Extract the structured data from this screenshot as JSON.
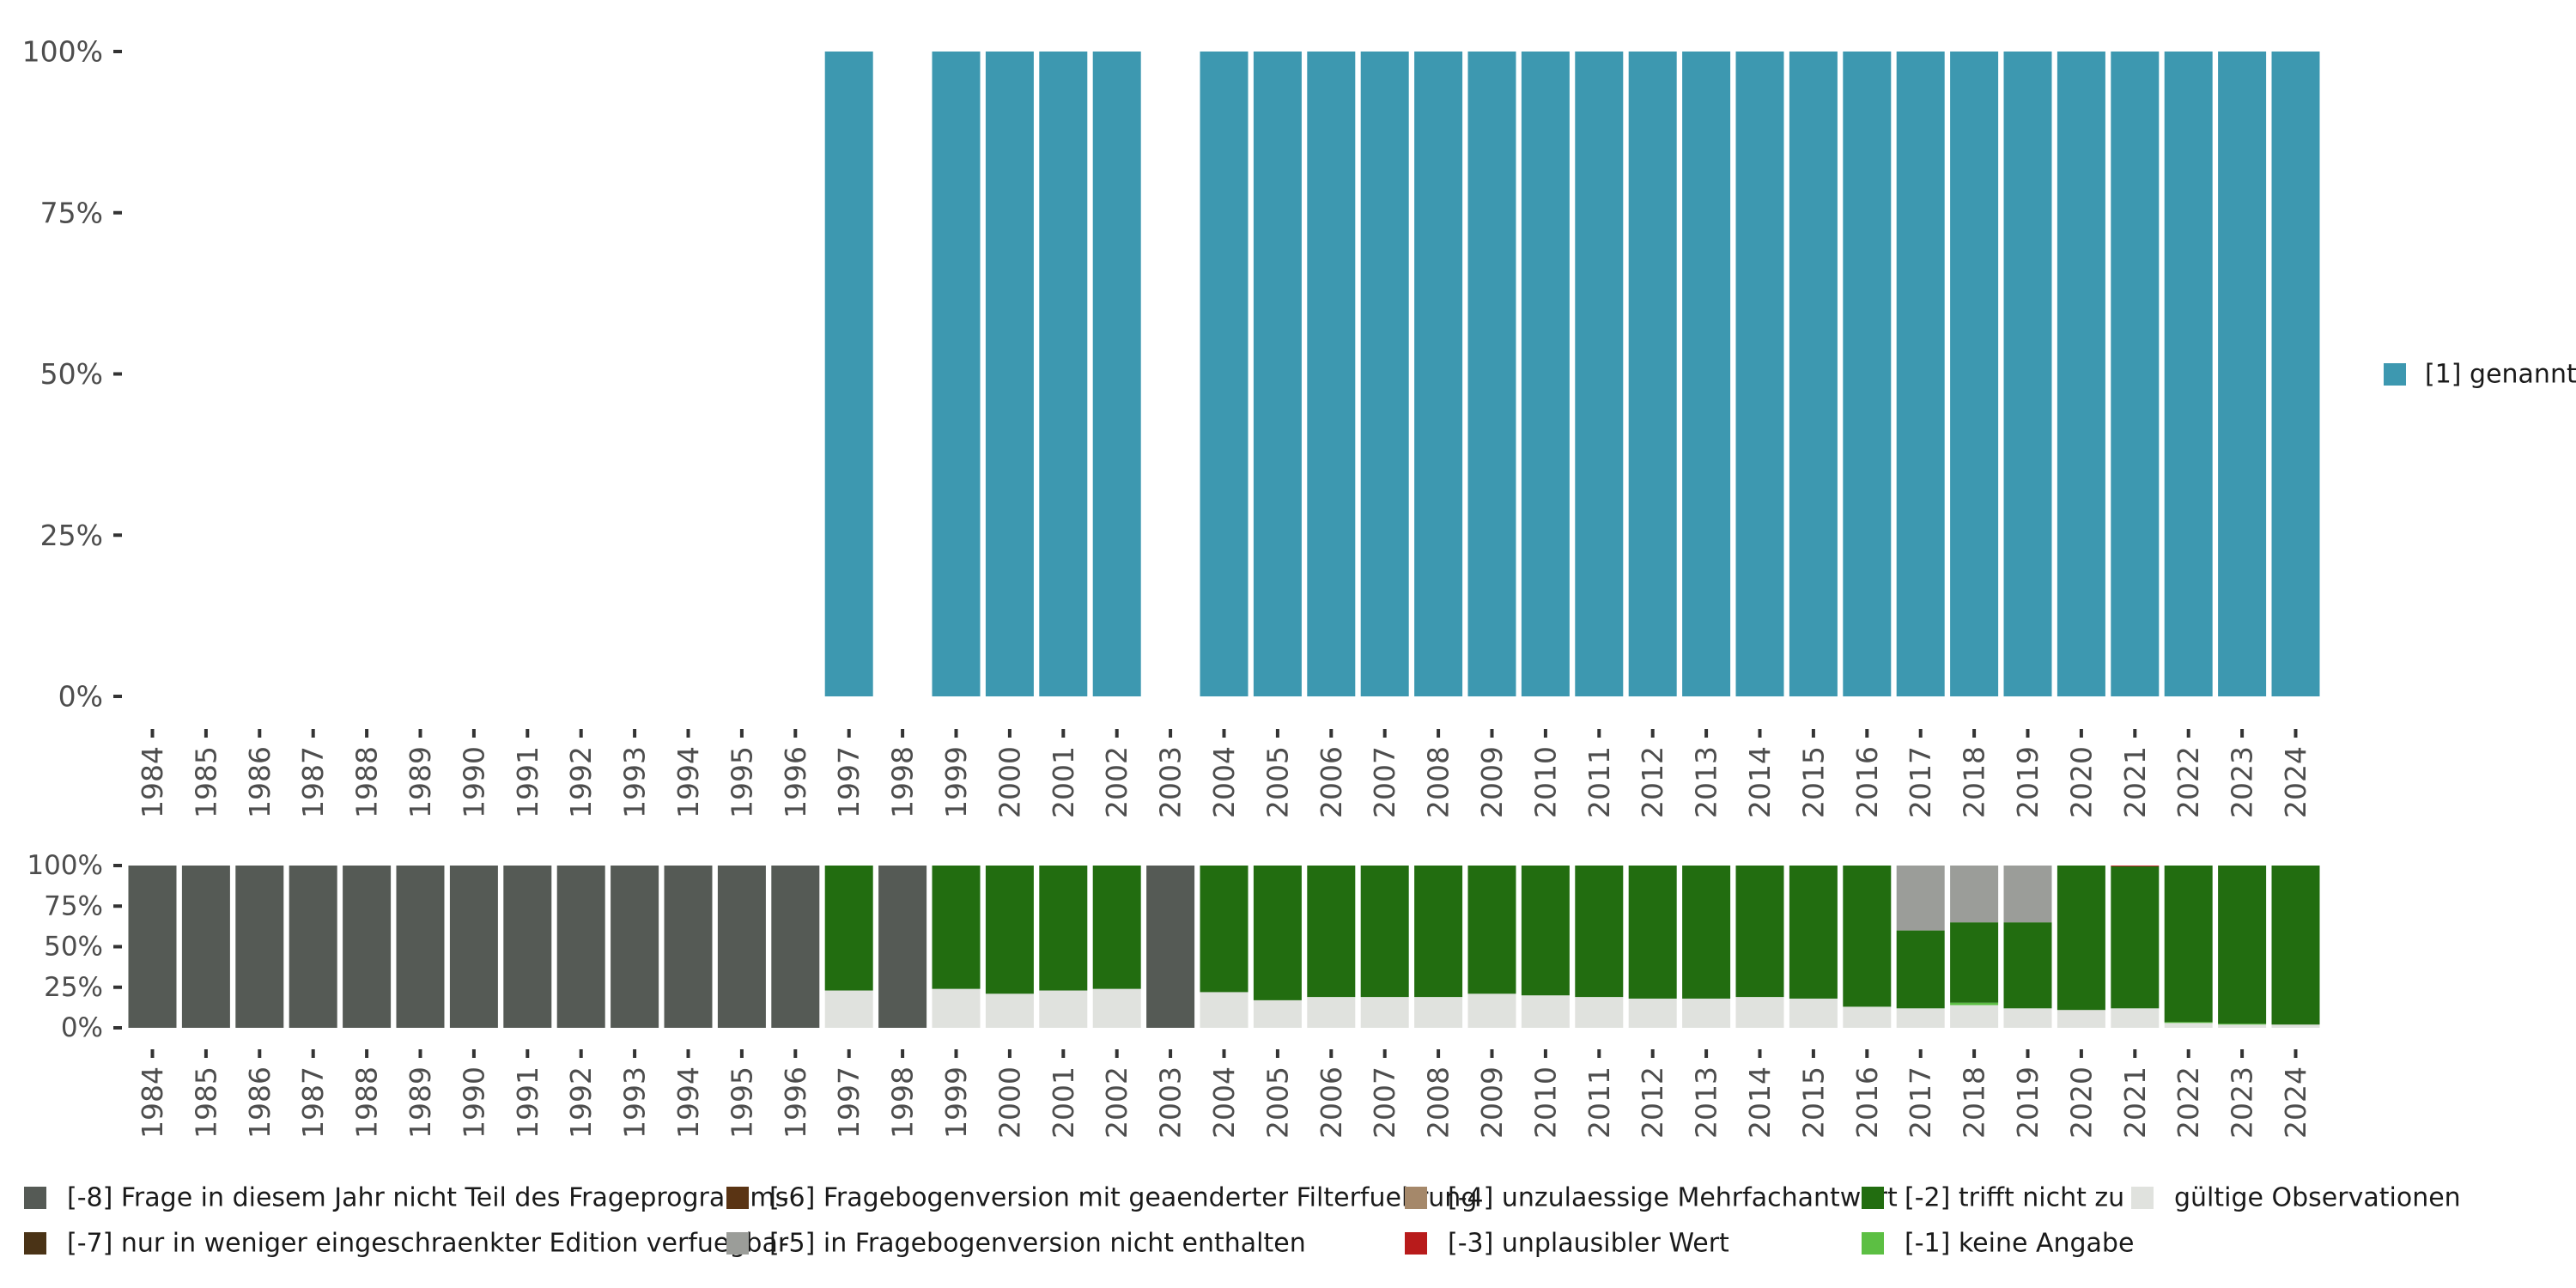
{
  "chart_data": [
    {
      "type": "bar",
      "stacked": true,
      "categories": [
        "1984",
        "1985",
        "1986",
        "1987",
        "1988",
        "1989",
        "1990",
        "1991",
        "1992",
        "1993",
        "1994",
        "1995",
        "1996",
        "1997",
        "1998",
        "1999",
        "2000",
        "2001",
        "2002",
        "2003",
        "2004",
        "2005",
        "2006",
        "2007",
        "2008",
        "2009",
        "2010",
        "2011",
        "2012",
        "2013",
        "2014",
        "2015",
        "2016",
        "2017",
        "2018",
        "2019",
        "2020",
        "2021",
        "2022",
        "2023",
        "2024"
      ],
      "y_tick_labels": [
        "0%",
        "25%",
        "50%",
        "75%",
        "100%"
      ],
      "ylim": [
        0,
        100
      ],
      "legend_position": "right",
      "series": [
        {
          "name": "[1] genannt",
          "color": "#3d98b0",
          "values": [
            0,
            0,
            0,
            0,
            0,
            0,
            0,
            0,
            0,
            0,
            0,
            0,
            0,
            100,
            0,
            100,
            100,
            100,
            100,
            0,
            100,
            100,
            100,
            100,
            100,
            100,
            100,
            100,
            100,
            100,
            100,
            100,
            100,
            100,
            100,
            100,
            100,
            100,
            100,
            100,
            100
          ]
        }
      ]
    },
    {
      "type": "bar",
      "stacked": true,
      "categories": [
        "1984",
        "1985",
        "1986",
        "1987",
        "1988",
        "1989",
        "1990",
        "1991",
        "1992",
        "1993",
        "1994",
        "1995",
        "1996",
        "1997",
        "1998",
        "1999",
        "2000",
        "2001",
        "2002",
        "2003",
        "2004",
        "2005",
        "2006",
        "2007",
        "2008",
        "2009",
        "2010",
        "2011",
        "2012",
        "2013",
        "2014",
        "2015",
        "2016",
        "2017",
        "2018",
        "2019",
        "2020",
        "2021",
        "2022",
        "2023",
        "2024"
      ],
      "y_tick_labels": [
        "0%",
        "25%",
        "50%",
        "75%",
        "100%"
      ],
      "ylim": [
        0,
        100
      ],
      "legend_position": "bottom",
      "series": [
        {
          "name": "gültige Observationen",
          "color": "#e0e2de",
          "values": [
            0,
            0,
            0,
            0,
            0,
            0,
            0,
            0,
            0,
            0,
            0,
            0,
            0,
            23,
            0,
            24,
            21,
            23,
            24,
            0,
            22,
            17,
            19,
            19,
            19,
            21,
            20,
            19,
            18,
            18,
            19,
            18,
            13,
            12,
            14,
            12,
            11,
            12,
            3,
            2,
            2
          ]
        },
        {
          "name": "[-1] keine Angabe",
          "color": "#5cbf43",
          "values": [
            0,
            0,
            0,
            0,
            0,
            0,
            0,
            0,
            0,
            0,
            0,
            0,
            0,
            0,
            0,
            0,
            0,
            0,
            0,
            0,
            0,
            0,
            0,
            0,
            0,
            0,
            0,
            0,
            0,
            0,
            0,
            0,
            0,
            0,
            1.5,
            0,
            0,
            0,
            0.5,
            0.5,
            0
          ]
        },
        {
          "name": "[-2] trifft nicht zu",
          "color": "#226d10",
          "values": [
            0,
            0,
            0,
            0,
            0,
            0,
            0,
            0,
            0,
            0,
            0,
            0,
            0,
            77,
            0,
            76,
            79,
            77,
            76,
            0,
            78,
            83,
            81,
            81,
            81,
            79,
            80,
            81,
            82,
            82,
            81,
            82,
            87,
            48,
            49.5,
            53,
            89,
            87.5,
            96.5,
            97.5,
            98
          ]
        },
        {
          "name": "[-3] unplausibler Wert",
          "color": "#b81b1b",
          "values": [
            0,
            0,
            0,
            0,
            0,
            0,
            0,
            0,
            0,
            0,
            0,
            0,
            0,
            0,
            0,
            0,
            0,
            0,
            0,
            0,
            0,
            0,
            0,
            0,
            0,
            0,
            0,
            0,
            0,
            0,
            0,
            0,
            0,
            0,
            0,
            0,
            0,
            0.5,
            0,
            0,
            0
          ]
        },
        {
          "name": "[-4] unzulaessige Mehrfachantwort",
          "color": "#a5886a",
          "values": [
            0,
            0,
            0,
            0,
            0,
            0,
            0,
            0,
            0,
            0,
            0,
            0,
            0,
            0,
            0,
            0,
            0,
            0,
            0,
            0,
            0,
            0,
            0,
            0,
            0,
            0,
            0,
            0,
            0,
            0,
            0,
            0,
            0,
            0,
            0,
            0,
            0,
            0,
            0,
            0,
            0
          ]
        },
        {
          "name": "[-5] in Fragebogenversion nicht enthalten",
          "color": "#9b9d99",
          "values": [
            0,
            0,
            0,
            0,
            0,
            0,
            0,
            0,
            0,
            0,
            0,
            0,
            0,
            0,
            0,
            0,
            0,
            0,
            0,
            0,
            0,
            0,
            0,
            0,
            0,
            0,
            0,
            0,
            0,
            0,
            0,
            0,
            0,
            40,
            35,
            35,
            0,
            0,
            0,
            0,
            0
          ]
        },
        {
          "name": "[-6] Fragebogenversion mit geaenderter Filterfuehrung",
          "color": "#5a3414",
          "values": [
            0,
            0,
            0,
            0,
            0,
            0,
            0,
            0,
            0,
            0,
            0,
            0,
            0,
            0,
            0,
            0,
            0,
            0,
            0,
            0,
            0,
            0,
            0,
            0,
            0,
            0,
            0,
            0,
            0,
            0,
            0,
            0,
            0,
            0,
            0,
            0,
            0,
            0,
            0,
            0,
            0
          ]
        },
        {
          "name": "[-7] nur in weniger eingeschraenkter Edition verfuegbar",
          "color": "#4a3316",
          "values": [
            0,
            0,
            0,
            0,
            0,
            0,
            0,
            0,
            0,
            0,
            0,
            0,
            0,
            0,
            0,
            0,
            0,
            0,
            0,
            0,
            0,
            0,
            0,
            0,
            0,
            0,
            0,
            0,
            0,
            0,
            0,
            0,
            0,
            0,
            0,
            0,
            0,
            0,
            0,
            0,
            0
          ]
        },
        {
          "name": "[-8] Frage in diesem Jahr nicht Teil des Frageprogramms",
          "color": "#555a55",
          "values": [
            100,
            100,
            100,
            100,
            100,
            100,
            100,
            100,
            100,
            100,
            100,
            100,
            100,
            0,
            100,
            0,
            0,
            0,
            0,
            100,
            0,
            0,
            0,
            0,
            0,
            0,
            0,
            0,
            0,
            0,
            0,
            0,
            0,
            0,
            0,
            0,
            0,
            0,
            0,
            0,
            0
          ]
        }
      ],
      "legend_order": [
        "[-8] Frage in diesem Jahr nicht Teil des Frageprogramms",
        "[-7] nur in weniger eingeschraenkter Edition verfuegbar",
        "[-6] Fragebogenversion mit geaenderter Filterfuehrung",
        "[-5] in Fragebogenversion nicht enthalten",
        "[-4] unzulaessige Mehrfachantwort",
        "[-3] unplausibler Wert",
        "[-2] trifft nicht zu",
        "[-1] keine Angabe",
        "gültige Observationen"
      ]
    }
  ]
}
